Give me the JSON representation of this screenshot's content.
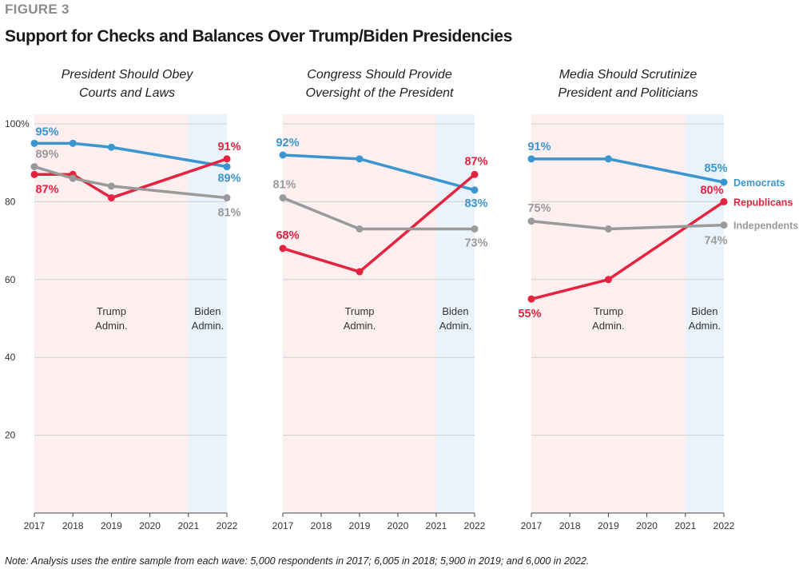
{
  "figure_label": "FIGURE 3",
  "title": "Support for Checks and Balances Over Trump/Biden Presidencies",
  "note": "Note: Analysis uses the entire sample from each wave: 5,000 respondents in 2017; 6,005 in 2018; 5,900 in 2019; and 6,000 in 2022.",
  "colors": {
    "Democrats": "#3a95d0",
    "Republicans": "#e3233f",
    "Independents": "#9a9a9a",
    "trump_shade": "#fdeff0",
    "biden_shade": "#eaf3fb"
  },
  "chart_data": [
    {
      "type": "line",
      "title_lines": [
        "President Should Obey",
        "Courts and Laws"
      ],
      "x_ticks": [
        "2017",
        "2018",
        "2019",
        "2020",
        "2021",
        "2022"
      ],
      "y_ticks": [
        "100%",
        "80",
        "60",
        "40",
        "20"
      ],
      "ylim": [
        0,
        100
      ],
      "periods": [
        {
          "label_lines": [
            "Trump",
            "Admin."
          ],
          "from": 2017,
          "to": 2021
        },
        {
          "label_lines": [
            "Biden",
            "Admin."
          ],
          "from": 2021,
          "to": 2022
        }
      ],
      "series": [
        {
          "name": "Democrats",
          "x": [
            2017,
            2018,
            2019,
            2022
          ],
          "y": [
            95,
            95,
            94,
            89
          ],
          "labels": [
            {
              "x": 2017,
              "text": "95%"
            },
            {
              "x": 2022,
              "text": "89%"
            }
          ]
        },
        {
          "name": "Republicans",
          "x": [
            2017,
            2018,
            2019,
            2022
          ],
          "y": [
            87,
            87,
            81,
            91
          ],
          "labels": [
            {
              "x": 2017,
              "text": "87%"
            },
            {
              "x": 2022,
              "text": "91%"
            }
          ]
        },
        {
          "name": "Independents",
          "x": [
            2017,
            2018,
            2019,
            2022
          ],
          "y": [
            89,
            86,
            84,
            81
          ],
          "labels": [
            {
              "x": 2017,
              "text": "89%"
            },
            {
              "x": 2022,
              "text": "81%"
            }
          ]
        }
      ]
    },
    {
      "type": "line",
      "title_lines": [
        "Congress Should Provide",
        "Oversight of the President"
      ],
      "x_ticks": [
        "2017",
        "2018",
        "2019",
        "2020",
        "2021",
        "2022"
      ],
      "ylim": [
        0,
        100
      ],
      "periods": [
        {
          "label_lines": [
            "Trump",
            "Admin."
          ],
          "from": 2017,
          "to": 2021
        },
        {
          "label_lines": [
            "Biden",
            "Admin."
          ],
          "from": 2021,
          "to": 2022
        }
      ],
      "series": [
        {
          "name": "Democrats",
          "x": [
            2017,
            2019,
            2022
          ],
          "y": [
            92,
            91,
            83
          ],
          "labels": [
            {
              "x": 2017,
              "text": "92%"
            },
            {
              "x": 2022,
              "text": "83%"
            }
          ]
        },
        {
          "name": "Republicans",
          "x": [
            2017,
            2019,
            2022
          ],
          "y": [
            68,
            62,
            87
          ],
          "labels": [
            {
              "x": 2017,
              "text": "68%"
            },
            {
              "x": 2022,
              "text": "87%"
            }
          ]
        },
        {
          "name": "Independents",
          "x": [
            2017,
            2019,
            2022
          ],
          "y": [
            81,
            73,
            73
          ],
          "labels": [
            {
              "x": 2017,
              "text": "81%"
            },
            {
              "x": 2022,
              "text": "73%"
            }
          ]
        }
      ]
    },
    {
      "type": "line",
      "title_lines": [
        "Media Should Scrutinize",
        "President and Politicians"
      ],
      "x_ticks": [
        "2017",
        "2018",
        "2019",
        "2020",
        "2021",
        "2022"
      ],
      "ylim": [
        0,
        100
      ],
      "periods": [
        {
          "label_lines": [
            "Trump",
            "Admin."
          ],
          "from": 2017,
          "to": 2021
        },
        {
          "label_lines": [
            "Biden",
            "Admin."
          ],
          "from": 2021,
          "to": 2022
        }
      ],
      "legend": [
        "Democrats",
        "Republicans",
        "Independents"
      ],
      "series": [
        {
          "name": "Democrats",
          "x": [
            2017,
            2019,
            2022
          ],
          "y": [
            91,
            91,
            85
          ],
          "labels": [
            {
              "x": 2017,
              "text": "91%"
            },
            {
              "x": 2022,
              "text": "85%"
            }
          ]
        },
        {
          "name": "Republicans",
          "x": [
            2017,
            2019,
            2022
          ],
          "y": [
            55,
            60,
            80
          ],
          "labels": [
            {
              "x": 2017,
              "text": "55%"
            },
            {
              "x": 2022,
              "text": "80%"
            }
          ]
        },
        {
          "name": "Independents",
          "x": [
            2017,
            2019,
            2022
          ],
          "y": [
            75,
            73,
            74
          ],
          "labels": [
            {
              "x": 2017,
              "text": "75%"
            },
            {
              "x": 2022,
              "text": "74%"
            }
          ]
        }
      ]
    }
  ]
}
